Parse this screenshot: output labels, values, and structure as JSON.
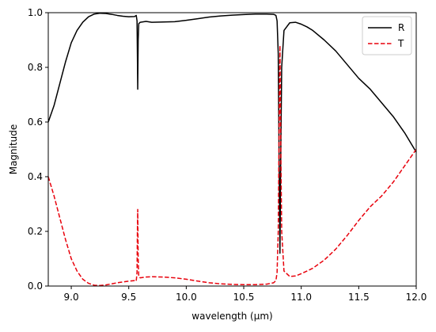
{
  "chart_data": {
    "type": "line",
    "xlabel": "wavelength (μm)",
    "ylabel": "Magnitude",
    "xlim": [
      8.8,
      12.0
    ],
    "ylim": [
      0.0,
      1.0
    ],
    "xticks": [
      "9.0",
      "9.5",
      "10.0",
      "10.5",
      "11.0",
      "11.5",
      "12.0"
    ],
    "yticks": [
      "0.0",
      "0.2",
      "0.4",
      "0.6",
      "0.8",
      "1.0"
    ],
    "grid": false,
    "legend_position": "top-right",
    "series": [
      {
        "name": "R",
        "color": "#000000",
        "style": "solid",
        "points": [
          [
            8.8,
            0.6
          ],
          [
            8.85,
            0.66
          ],
          [
            8.9,
            0.74
          ],
          [
            8.95,
            0.82
          ],
          [
            9.0,
            0.89
          ],
          [
            9.05,
            0.935
          ],
          [
            9.1,
            0.965
          ],
          [
            9.15,
            0.985
          ],
          [
            9.2,
            0.995
          ],
          [
            9.25,
            0.998
          ],
          [
            9.3,
            0.997
          ],
          [
            9.35,
            0.994
          ],
          [
            9.4,
            0.99
          ],
          [
            9.45,
            0.987
          ],
          [
            9.5,
            0.985
          ],
          [
            9.55,
            0.986
          ],
          [
            9.565,
            0.99
          ],
          [
            9.572,
            0.97
          ],
          [
            9.575,
            0.85
          ],
          [
            9.578,
            0.72
          ],
          [
            9.582,
            0.9
          ],
          [
            9.587,
            0.96
          ],
          [
            9.6,
            0.965
          ],
          [
            9.65,
            0.968
          ],
          [
            9.7,
            0.965
          ],
          [
            9.8,
            0.966
          ],
          [
            9.9,
            0.967
          ],
          [
            10.0,
            0.972
          ],
          [
            10.1,
            0.978
          ],
          [
            10.2,
            0.984
          ],
          [
            10.3,
            0.988
          ],
          [
            10.4,
            0.991
          ],
          [
            10.5,
            0.993
          ],
          [
            10.6,
            0.995
          ],
          [
            10.7,
            0.995
          ],
          [
            10.76,
            0.994
          ],
          [
            10.78,
            0.99
          ],
          [
            10.79,
            0.97
          ],
          [
            10.8,
            0.85
          ],
          [
            10.81,
            0.35
          ],
          [
            10.815,
            0.12
          ],
          [
            10.82,
            0.4
          ],
          [
            10.83,
            0.8
          ],
          [
            10.85,
            0.935
          ],
          [
            10.9,
            0.963
          ],
          [
            10.95,
            0.965
          ],
          [
            11.0,
            0.958
          ],
          [
            11.05,
            0.948
          ],
          [
            11.1,
            0.935
          ],
          [
            11.2,
            0.9
          ],
          [
            11.3,
            0.86
          ],
          [
            11.4,
            0.81
          ],
          [
            11.5,
            0.76
          ],
          [
            11.6,
            0.72
          ],
          [
            11.7,
            0.67
          ],
          [
            11.8,
            0.62
          ],
          [
            11.9,
            0.56
          ],
          [
            12.0,
            0.49
          ]
        ]
      },
      {
        "name": "T",
        "color": "#e8000b",
        "style": "dashed",
        "points": [
          [
            8.8,
            0.4
          ],
          [
            8.85,
            0.33
          ],
          [
            8.9,
            0.25
          ],
          [
            8.95,
            0.17
          ],
          [
            9.0,
            0.1
          ],
          [
            9.05,
            0.055
          ],
          [
            9.1,
            0.025
          ],
          [
            9.15,
            0.01
          ],
          [
            9.2,
            0.003
          ],
          [
            9.25,
            0.002
          ],
          [
            9.3,
            0.004
          ],
          [
            9.35,
            0.008
          ],
          [
            9.4,
            0.012
          ],
          [
            9.45,
            0.015
          ],
          [
            9.5,
            0.018
          ],
          [
            9.55,
            0.02
          ],
          [
            9.565,
            0.018
          ],
          [
            9.572,
            0.05
          ],
          [
            9.575,
            0.2
          ],
          [
            9.578,
            0.28
          ],
          [
            9.582,
            0.1
          ],
          [
            9.587,
            0.035
          ],
          [
            9.6,
            0.03
          ],
          [
            9.65,
            0.033
          ],
          [
            9.7,
            0.034
          ],
          [
            9.8,
            0.033
          ],
          [
            9.9,
            0.03
          ],
          [
            10.0,
            0.025
          ],
          [
            10.1,
            0.018
          ],
          [
            10.2,
            0.012
          ],
          [
            10.3,
            0.008
          ],
          [
            10.4,
            0.006
          ],
          [
            10.5,
            0.005
          ],
          [
            10.6,
            0.005
          ],
          [
            10.7,
            0.007
          ],
          [
            10.76,
            0.012
          ],
          [
            10.78,
            0.02
          ],
          [
            10.79,
            0.05
          ],
          [
            10.8,
            0.2
          ],
          [
            10.81,
            0.7
          ],
          [
            10.815,
            0.88
          ],
          [
            10.82,
            0.6
          ],
          [
            10.83,
            0.2
          ],
          [
            10.85,
            0.055
          ],
          [
            10.9,
            0.035
          ],
          [
            10.95,
            0.037
          ],
          [
            11.0,
            0.045
          ],
          [
            11.05,
            0.055
          ],
          [
            11.1,
            0.065
          ],
          [
            11.2,
            0.095
          ],
          [
            11.3,
            0.135
          ],
          [
            11.4,
            0.185
          ],
          [
            11.5,
            0.24
          ],
          [
            11.6,
            0.29
          ],
          [
            11.7,
            0.33
          ],
          [
            11.8,
            0.38
          ],
          [
            11.9,
            0.44
          ],
          [
            12.0,
            0.5
          ]
        ]
      }
    ]
  }
}
